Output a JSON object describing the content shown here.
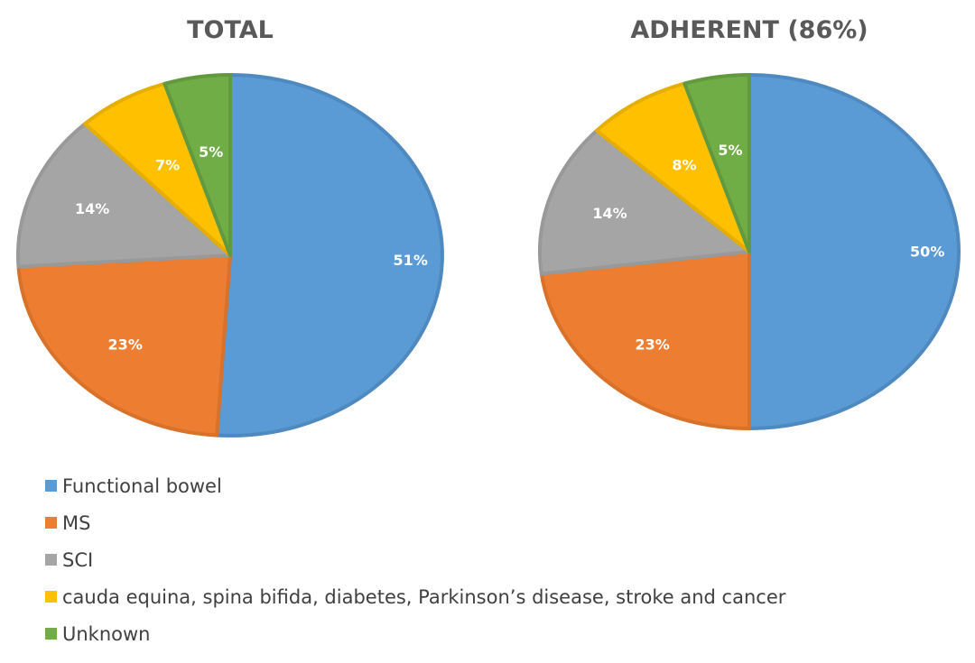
{
  "chart_data": [
    {
      "type": "pie",
      "title": "TOTAL",
      "categories": [
        "Functional bowel",
        "MS",
        "SCI",
        "cauda equina, spina bifida, diabetes, Parkinson’s disease, stroke and cancer",
        "Unknown"
      ],
      "values": [
        51,
        23,
        14,
        7,
        5
      ],
      "data_labels": [
        "51%",
        "23%",
        "14%",
        "7%",
        "5%"
      ]
    },
    {
      "type": "pie",
      "title": "ADHERENT (86%)",
      "categories": [
        "Functional bowel",
        "MS",
        "SCI",
        "cauda equina, spina bifida, diabetes, Parkinson’s disease, stroke and cancer",
        "Unknown"
      ],
      "values": [
        50,
        23,
        14,
        8,
        5
      ],
      "data_labels": [
        "50%",
        "23%",
        "14%",
        "8%",
        "5%"
      ]
    }
  ],
  "legend": {
    "placement": "bottom-left",
    "items": [
      {
        "label": "Functional bowel",
        "color": "#5B9BD5"
      },
      {
        "label": "MS",
        "color": "#ED7D31"
      },
      {
        "label": "SCI",
        "color": "#A5A5A5"
      },
      {
        "label": "cauda equina, spina bifida, diabetes, Parkinson’s disease, stroke and cancer",
        "color": "#FFC000"
      },
      {
        "label": "Unknown",
        "color": "#70AD47"
      }
    ]
  },
  "slice_border_colors": [
    "#4E89C0",
    "#D8712A",
    "#999999",
    "#E6AE00",
    "#62993E"
  ]
}
